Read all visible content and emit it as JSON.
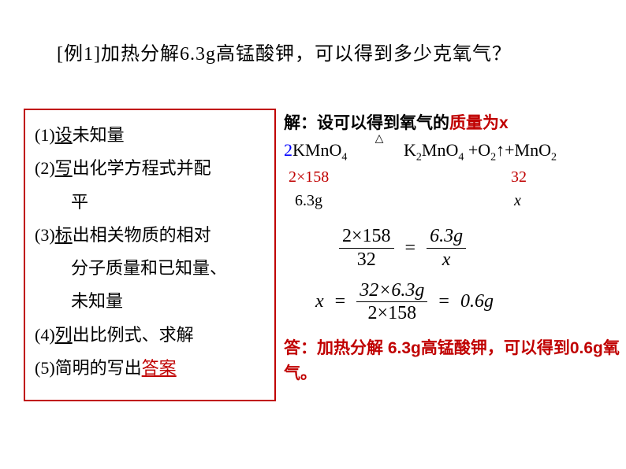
{
  "title": "[例1]加热分解6.3g高锰酸钾，可以得到多少克氧气？",
  "steps": {
    "s1_pre": "(1)",
    "s1_ul": "设",
    "s1_post": "未知量",
    "s2_pre": "(2)",
    "s2_ul": "写",
    "s2_post": "出化学方程式并配",
    "s2_line2": "平",
    "s3_pre": "(3)",
    "s3_ul": "标",
    "s3_post": "出相关物质的相对",
    "s3_line2": "分子质量和已知量、",
    "s3_line3": "未知量",
    "s4_pre": "(4)",
    "s4_ul": "列",
    "s4_post": "出比例式、求解",
    "s5_pre": "(5)",
    "s5_post_a": "简明的写出",
    "s5_ul": "答案"
  },
  "solution": {
    "prefix": "解：设可以得到氧气的",
    "red": "质量为x",
    "coef": "2",
    "reactant": "KMnO",
    "reactant_sub": "4",
    "triangle": "△",
    "prod1": "K",
    "prod1_sub1": "2",
    "prod1_mid": "MnO",
    "prod1_sub2": "4",
    "plus1": " +O",
    "o2_sub": "2",
    "arrow_up": "↑+MnO",
    "mno2_sub": "2",
    "mm_left": "2×158",
    "mm_right": "32",
    "mass_left": "6.3g",
    "mass_right": "x",
    "frac1_num": "2×158",
    "frac1_den": "32",
    "frac2_num": "6.3g",
    "frac2_den": "x",
    "eq": "=",
    "x_var": "x",
    "frac3_num": "32×6.3g",
    "frac3_den": "2×158",
    "result": "0.6g",
    "answer": "答：加热分解 6.3g高锰酸钾，可以得到0.6g氧气。"
  },
  "colors": {
    "red": "#c00000",
    "blue": "#0000ff",
    "black": "#000000",
    "bg": "#ffffff"
  }
}
